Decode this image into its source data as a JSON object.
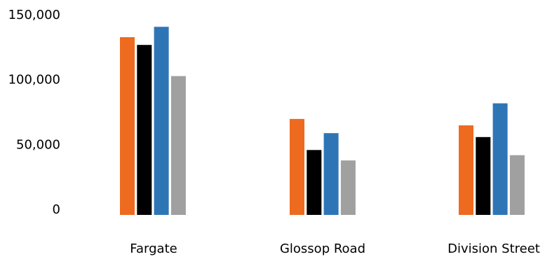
{
  "chart_data": {
    "type": "bar",
    "title": "",
    "xlabel": "",
    "ylabel": "",
    "categories": [
      "Fargate",
      "Glossop Road",
      "Division Street"
    ],
    "series": [
      {
        "color": "#ed6a1f",
        "values": [
          137000,
          74000,
          69000
        ]
      },
      {
        "color": "#000000",
        "values": [
          131000,
          50000,
          60000
        ]
      },
      {
        "color": "#2e75b6",
        "values": [
          145000,
          63000,
          86000
        ]
      },
      {
        "color": "#a0a0a0",
        "values": [
          107000,
          42000,
          46000
        ]
      }
    ],
    "ylim": [
      0,
      150000
    ],
    "yticks": [
      0,
      50000,
      100000,
      150000
    ],
    "ytick_labels": [
      "0",
      "50,000",
      "100,000",
      "150,000"
    ],
    "grid": false,
    "legend": "none"
  }
}
